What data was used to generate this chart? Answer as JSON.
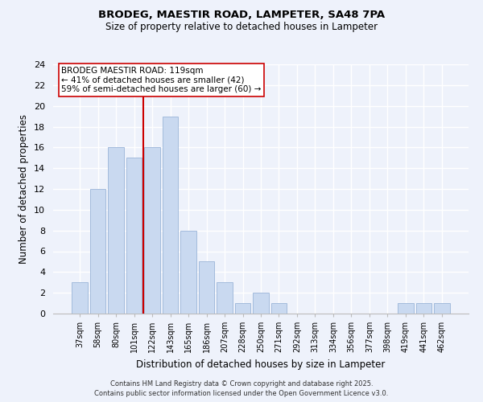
{
  "title1": "BRODEG, MAESTIR ROAD, LAMPETER, SA48 7PA",
  "title2": "Size of property relative to detached houses in Lampeter",
  "xlabel": "Distribution of detached houses by size in Lampeter",
  "ylabel": "Number of detached properties",
  "bar_labels": [
    "37sqm",
    "58sqm",
    "80sqm",
    "101sqm",
    "122sqm",
    "143sqm",
    "165sqm",
    "186sqm",
    "207sqm",
    "228sqm",
    "250sqm",
    "271sqm",
    "292sqm",
    "313sqm",
    "334sqm",
    "356sqm",
    "377sqm",
    "398sqm",
    "419sqm",
    "441sqm",
    "462sqm"
  ],
  "bar_values": [
    3,
    12,
    16,
    15,
    16,
    19,
    8,
    5,
    3,
    1,
    2,
    1,
    0,
    0,
    0,
    0,
    0,
    0,
    1,
    1,
    1
  ],
  "bar_color": "#c9d9f0",
  "bar_edge_color": "#9ab4d8",
  "vline_x_index": 4,
  "vline_color": "#cc0000",
  "ylim": [
    0,
    24
  ],
  "yticks": [
    0,
    2,
    4,
    6,
    8,
    10,
    12,
    14,
    16,
    18,
    20,
    22,
    24
  ],
  "annotation_title": "BRODEG MAESTIR ROAD: 119sqm",
  "annotation_line1": "← 41% of detached houses are smaller (42)",
  "annotation_line2": "59% of semi-detached houses are larger (60) →",
  "annotation_box_color": "#ffffff",
  "annotation_box_edge": "#cc0000",
  "background_color": "#eef2fb",
  "grid_color": "#ffffff",
  "footer1": "Contains HM Land Registry data © Crown copyright and database right 2025.",
  "footer2": "Contains public sector information licensed under the Open Government Licence v3.0."
}
